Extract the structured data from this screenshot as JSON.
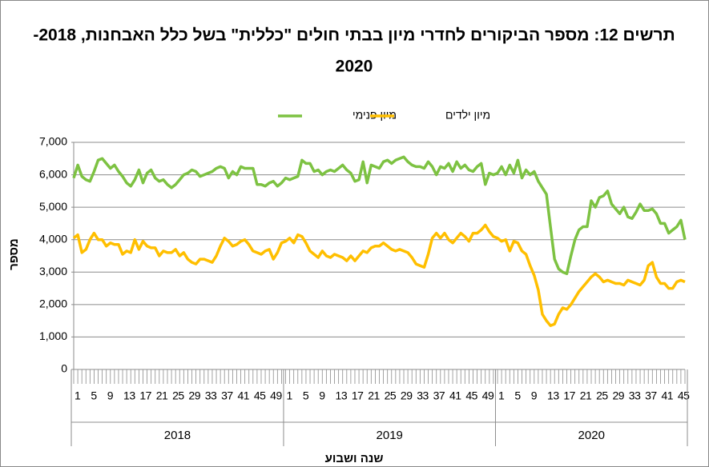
{
  "chart_data": {
    "type": "line",
    "title_lines": [
      "תרשים 12: מספר הביקורים לחדרי מיון בבתי חולים \"כללית\" בשל כלל האבחנות, 2018-",
      "2020"
    ],
    "x_label": "שנה ושבוע",
    "y_label": "מספר",
    "groups": [
      {
        "name": "2018",
        "categories": [
          "1",
          null,
          null,
          null,
          "5",
          null,
          null,
          null,
          "9",
          null,
          null,
          null,
          "13",
          null,
          null,
          null,
          "17",
          null,
          null,
          null,
          "21",
          null,
          null,
          null,
          "25",
          null,
          null,
          null,
          "29",
          null,
          null,
          null,
          "33",
          null,
          null,
          null,
          "37",
          null,
          null,
          null,
          "41",
          null,
          null,
          null,
          "45",
          null,
          null,
          null,
          "49",
          null,
          null,
          null
        ]
      },
      {
        "name": "2019",
        "categories": [
          "1",
          null,
          null,
          null,
          "5",
          null,
          null,
          null,
          "9",
          null,
          null,
          null,
          "13",
          null,
          null,
          null,
          "17",
          null,
          null,
          null,
          "21",
          null,
          null,
          null,
          "25",
          null,
          null,
          null,
          "29",
          null,
          null,
          null,
          "33",
          null,
          null,
          null,
          "37",
          null,
          null,
          null,
          "41",
          null,
          null,
          null,
          "45",
          null,
          null,
          null,
          "49",
          null,
          null,
          null
        ]
      },
      {
        "name": "2020",
        "categories": [
          "1",
          null,
          null,
          null,
          "5",
          null,
          null,
          null,
          "9",
          null,
          null,
          null,
          "13",
          null,
          null,
          null,
          "17",
          null,
          null,
          null,
          "21",
          null,
          null,
          null,
          "25",
          null,
          null,
          null,
          "29",
          null,
          null,
          null,
          "33",
          null,
          null,
          null,
          "37",
          null,
          null,
          null,
          "41",
          null,
          null,
          null,
          "45",
          null,
          null
        ]
      }
    ],
    "series": [
      {
        "name": "מיון פנימי",
        "color": "#7dc242",
        "values": [
          5900,
          6300,
          5950,
          5850,
          5800,
          6100,
          6450,
          6500,
          6350,
          6200,
          6300,
          6100,
          5950,
          5750,
          5650,
          5850,
          6150,
          5750,
          6050,
          6150,
          5900,
          5800,
          5850,
          5700,
          5600,
          5700,
          5850,
          6000,
          6050,
          6150,
          6100,
          5950,
          6000,
          6050,
          6100,
          6200,
          6250,
          6200,
          5900,
          6100,
          6000,
          6250,
          6200,
          6200,
          6200,
          5700,
          5700,
          5650,
          5750,
          5800,
          5650,
          5750,
          5900,
          5850,
          5900,
          5950,
          6450,
          6350,
          6350,
          6100,
          6150,
          6000,
          6100,
          6150,
          6100,
          6200,
          6300,
          6150,
          6050,
          5800,
          5850,
          6400,
          5750,
          6300,
          6250,
          6200,
          6400,
          6450,
          6350,
          6450,
          6500,
          6550,
          6400,
          6300,
          6250,
          6250,
          6200,
          6400,
          6250,
          6000,
          6250,
          6200,
          6350,
          6100,
          6400,
          6200,
          6300,
          6150,
          6100,
          6250,
          6350,
          5700,
          6050,
          6000,
          6050,
          6250,
          6000,
          6300,
          6050,
          6450,
          5900,
          6150,
          6000,
          6100,
          5800,
          5600,
          5400,
          4400,
          3400,
          3100,
          3000,
          2950,
          3500,
          4000,
          4300,
          4400,
          4400,
          5200,
          5000,
          5300,
          5350,
          5500,
          5100,
          4950,
          4800,
          5000,
          4700,
          4650,
          4850,
          5100,
          4900,
          4900,
          4950,
          4800,
          4500,
          4500,
          4200,
          4300,
          4400,
          4600,
          4000
        ]
      },
      {
        "name": "מיון ילדים",
        "color": "#ffbf00",
        "values": [
          4050,
          4150,
          3600,
          3700,
          4000,
          4200,
          4000,
          4000,
          3800,
          3900,
          3850,
          3850,
          3550,
          3650,
          3600,
          4000,
          3700,
          3950,
          3800,
          3750,
          3750,
          3500,
          3650,
          3600,
          3600,
          3700,
          3500,
          3600,
          3400,
          3300,
          3250,
          3400,
          3400,
          3350,
          3300,
          3500,
          3800,
          4050,
          3950,
          3800,
          3850,
          3950,
          4000,
          3850,
          3650,
          3600,
          3550,
          3650,
          3700,
          3400,
          3600,
          3900,
          3950,
          4050,
          3900,
          4150,
          4100,
          3900,
          3650,
          3550,
          3450,
          3650,
          3500,
          3450,
          3550,
          3500,
          3450,
          3350,
          3500,
          3350,
          3500,
          3650,
          3600,
          3750,
          3800,
          3800,
          3900,
          3800,
          3700,
          3650,
          3700,
          3650,
          3600,
          3450,
          3250,
          3200,
          3150,
          3550,
          4050,
          4200,
          4050,
          4200,
          4000,
          3900,
          4050,
          4200,
          4100,
          3950,
          4200,
          4200,
          4300,
          4450,
          4250,
          4100,
          4050,
          3950,
          4000,
          3650,
          3950,
          3900,
          3650,
          3550,
          3200,
          2900,
          2450,
          1700,
          1500,
          1350,
          1400,
          1700,
          1900,
          1850,
          2000,
          2200,
          2400,
          2550,
          2700,
          2850,
          2950,
          2850,
          2700,
          2750,
          2700,
          2650,
          2650,
          2600,
          2750,
          2700,
          2650,
          2600,
          2750,
          3200,
          3300,
          2850,
          2650,
          2650,
          2500,
          2500,
          2700,
          2750,
          2700
        ]
      }
    ],
    "ylim": [
      0,
      7000
    ],
    "yticks": [
      0,
      {
        "value": 1000,
        "label": "1,000"
      },
      {
        "value": 2000,
        "label": "2,000"
      },
      {
        "value": 3000,
        "label": "3,000"
      },
      {
        "value": 4000,
        "label": "4,000"
      },
      {
        "value": 5000,
        "label": "5,000"
      },
      {
        "value": 6000,
        "label": "6,000"
      },
      {
        "value": 7000,
        "label": "7,000"
      }
    ],
    "grid": true,
    "legend": "top"
  }
}
